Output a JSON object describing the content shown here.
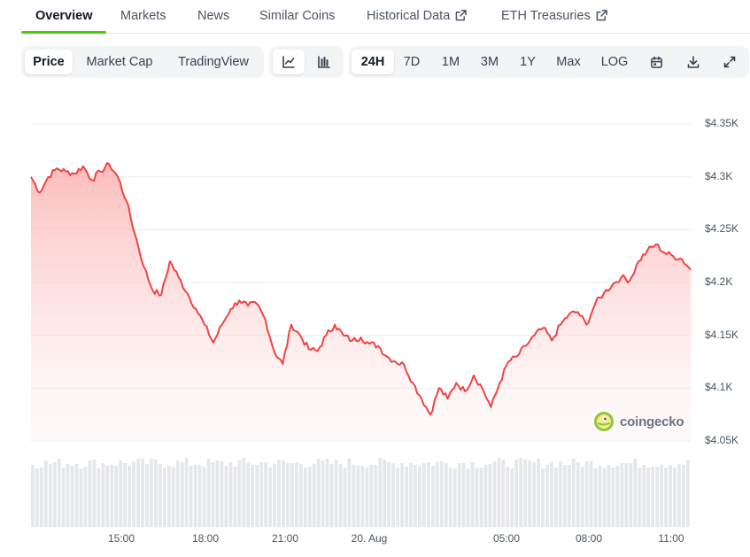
{
  "tabs": [
    {
      "label": "Overview"
    },
    {
      "label": "Markets"
    },
    {
      "label": "News"
    },
    {
      "label": "Similar Coins"
    },
    {
      "label": "Historical Data"
    },
    {
      "label": "ETH Treasuries"
    }
  ],
  "toolbar": {
    "metric": [
      "Price",
      "Market Cap",
      "TradingView"
    ],
    "ranges": [
      "24H",
      "7D",
      "1M",
      "3M",
      "1Y",
      "Max",
      "LOG"
    ],
    "icons": [
      "line-chart-icon",
      "candlestick-icon",
      "calendar-icon",
      "download-icon",
      "fullscreen-icon"
    ]
  },
  "watermark": "coingecko",
  "colors": {
    "line": "#ef4444",
    "fill": "#fecaca",
    "accent": "#4bcc00",
    "volume": "#e5e7eb"
  },
  "chart_data": {
    "type": "area",
    "y_tick_labels": [
      "$4.35K",
      "$4.3K",
      "$4.25K",
      "$4.2K",
      "$4.15K",
      "$4.1K",
      "$4.05K"
    ],
    "y_tick_values": [
      4350,
      4300,
      4250,
      4200,
      4150,
      4100,
      4050
    ],
    "x_tick_labels": [
      "15:00",
      "18:00",
      "21:00",
      "20. Aug",
      "05:00",
      "08:00",
      "11:00"
    ],
    "ylim": [
      4050,
      4350
    ],
    "grid": true,
    "price_series": [
      4300,
      4285,
      4300,
      4308,
      4305,
      4303,
      4310,
      4297,
      4305,
      4312,
      4300,
      4277,
      4245,
      4215,
      4193,
      4188,
      4220,
      4205,
      4190,
      4175,
      4160,
      4143,
      4160,
      4175,
      4183,
      4178,
      4180,
      4165,
      4135,
      4123,
      4160,
      4150,
      4137,
      4135,
      4150,
      4160,
      4150,
      4145,
      4148,
      4142,
      4140,
      4130,
      4125,
      4122,
      4105,
      4090,
      4075,
      4100,
      4090,
      4105,
      4097,
      4112,
      4100,
      4082,
      4105,
      4125,
      4130,
      4140,
      4150,
      4157,
      4145,
      4160,
      4170,
      4172,
      4160,
      4180,
      4190,
      4198,
      4205,
      4202,
      4220,
      4230,
      4236,
      4228,
      4225,
      4222,
      4212
    ]
  }
}
